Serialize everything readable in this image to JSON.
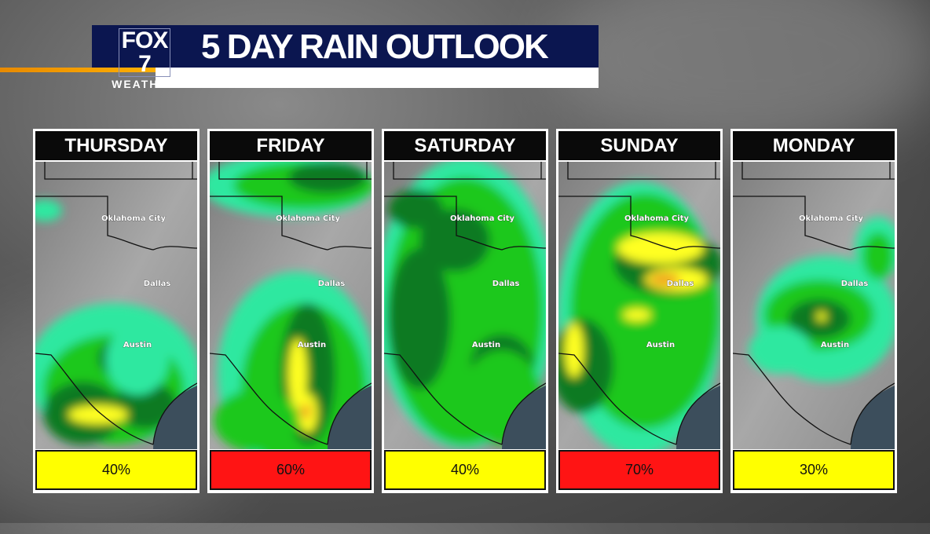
{
  "header": {
    "logo_text": "FOX 7",
    "logo_sub": "WEATHER",
    "title": "5 DAY RAIN OUTLOOK"
  },
  "cities": {
    "okc": "Oklahoma City",
    "dallas": "Dallas",
    "austin": "Austin"
  },
  "colors": {
    "title_bar": "#0b1650",
    "accent": "#f0a000",
    "chance_moderate": "#ffff00",
    "chance_high": "#ff1414"
  },
  "days": [
    {
      "day": "THURSDAY",
      "chance": "40%",
      "chance_value": 40,
      "color": "#ffff00"
    },
    {
      "day": "FRIDAY",
      "chance": "60%",
      "chance_value": 60,
      "color": "#ff1414"
    },
    {
      "day": "SATURDAY",
      "chance": "40%",
      "chance_value": 40,
      "color": "#ffff00"
    },
    {
      "day": "SUNDAY",
      "chance": "70%",
      "chance_value": 70,
      "color": "#ff1414"
    },
    {
      "day": "MONDAY",
      "chance": "30%",
      "chance_value": 30,
      "color": "#ffff00"
    }
  ]
}
